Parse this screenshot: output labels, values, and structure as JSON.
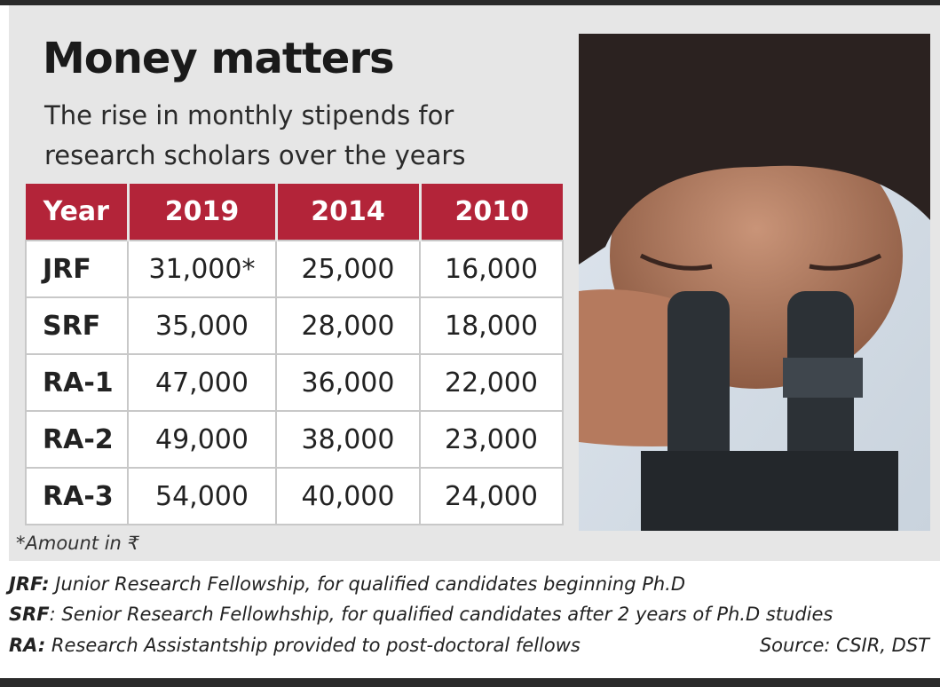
{
  "header": {
    "title": "Money matters",
    "subtitle": [
      "The rise in monthly stipends for",
      "research scholars over the years"
    ]
  },
  "table": {
    "columns": [
      "Year",
      "2019",
      "2014",
      "2010"
    ],
    "rows": [
      [
        "JRF",
        "31,000*",
        "25,000",
        "16,000"
      ],
      [
        "SRF",
        "35,000",
        "28,000",
        "18,000"
      ],
      [
        "RA-1",
        "47,000",
        "36,000",
        "22,000"
      ],
      [
        "RA-2",
        "49,000",
        "38,000",
        "23,000"
      ],
      [
        "RA-3",
        "54,000",
        "40,000",
        "24,000"
      ]
    ]
  },
  "footnote": "*Amount in ₹",
  "notes": [
    {
      "abbr": "JRF:",
      "text": "Junior Research Fellowship, for qualified candidates beginning Ph.D"
    },
    {
      "abbr": "SRF",
      "text": ": Senior Research Fellowhship, for qualified candidates after 2 years of Ph.D studies"
    },
    {
      "abbr": "RA:",
      "text": "Research Assistantship provided to post-doctoral fellows"
    }
  ],
  "source": "Source: CSIR, DST"
}
